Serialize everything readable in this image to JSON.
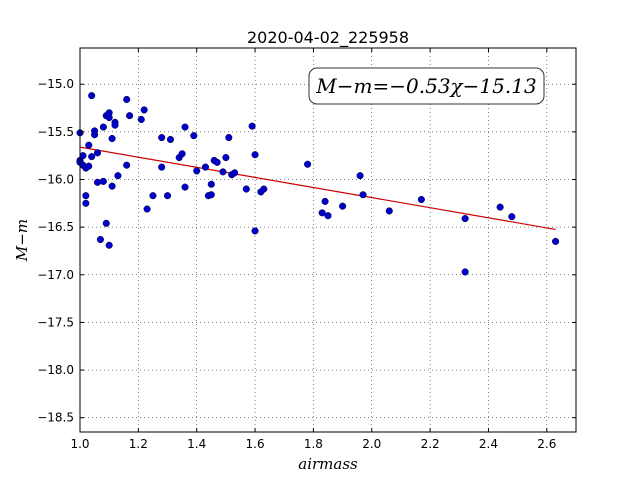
{
  "chart_data": {
    "type": "scatter",
    "title": "2020-04-02_225958",
    "xlabel": "airmass",
    "ylabel": "M−m",
    "xlim": [
      1.0,
      2.7
    ],
    "ylim": [
      -18.65,
      -14.62
    ],
    "y_inverted": true,
    "grid": true,
    "xticks": [
      1.0,
      1.2,
      1.4,
      1.6,
      1.8,
      2.0,
      2.2,
      2.4,
      2.6
    ],
    "xtick_labels": [
      "1.0",
      "1.2",
      "1.4",
      "1.6",
      "1.8",
      "2.0",
      "2.2",
      "2.4",
      "2.6"
    ],
    "yticks": [
      -15.0,
      -15.5,
      -16.0,
      -16.5,
      -17.0,
      -17.5,
      -18.0,
      -18.5
    ],
    "ytick_labels": [
      "−15.0",
      "−15.5",
      "−16.0",
      "−16.5",
      "−17.0",
      "−17.5",
      "−18.0",
      "−18.5"
    ],
    "annotation": "M−m=−0.53χ−15.13",
    "marker_color": "#0000cc",
    "fit_color": "#cc0000",
    "fit": {
      "slope": -0.53,
      "intercept": -15.13,
      "x_range": [
        1.0,
        2.63
      ]
    },
    "x": [
      1.0,
      1.0,
      1.0,
      1.01,
      1.01,
      1.02,
      1.02,
      1.02,
      1.03,
      1.03,
      1.04,
      1.04,
      1.05,
      1.05,
      1.06,
      1.06,
      1.07,
      1.08,
      1.08,
      1.09,
      1.09,
      1.1,
      1.1,
      1.1,
      1.11,
      1.11,
      1.12,
      1.12,
      1.13,
      1.16,
      1.16,
      1.17,
      1.21,
      1.22,
      1.23,
      1.25,
      1.28,
      1.28,
      1.3,
      1.31,
      1.34,
      1.35,
      1.36,
      1.36,
      1.39,
      1.4,
      1.43,
      1.44,
      1.45,
      1.45,
      1.46,
      1.47,
      1.49,
      1.5,
      1.51,
      1.52,
      1.53,
      1.57,
      1.59,
      1.6,
      1.6,
      1.62,
      1.63,
      1.78,
      1.83,
      1.84,
      1.85,
      1.9,
      1.96,
      1.97,
      2.06,
      2.17,
      2.32,
      2.32,
      2.44,
      2.48,
      2.63
    ],
    "y": [
      -15.51,
      -15.8,
      -15.82,
      -15.85,
      -15.75,
      -16.17,
      -16.25,
      -15.88,
      -15.64,
      -15.86,
      -15.76,
      -15.12,
      -15.53,
      -15.49,
      -15.72,
      -16.03,
      -16.63,
      -15.45,
      -16.02,
      -15.33,
      -16.46,
      -16.69,
      -15.35,
      -15.3,
      -16.07,
      -15.57,
      -15.4,
      -15.43,
      -15.96,
      -15.16,
      -15.85,
      -15.33,
      -15.37,
      -15.27,
      -16.31,
      -16.17,
      -15.56,
      -15.87,
      -16.17,
      -15.58,
      -15.77,
      -15.73,
      -15.45,
      -16.08,
      -15.54,
      -15.91,
      -15.87,
      -16.17,
      -16.16,
      -16.05,
      -15.8,
      -15.82,
      -15.92,
      -15.77,
      -15.56,
      -15.95,
      -15.93,
      -16.1,
      -15.44,
      -15.74,
      -16.54,
      -16.13,
      -16.1,
      -15.84,
      -16.35,
      -16.23,
      -16.38,
      -16.28,
      -15.96,
      -16.16,
      -16.33,
      -16.21,
      -16.41,
      -16.97,
      -16.29,
      -16.39,
      -16.65
    ]
  }
}
